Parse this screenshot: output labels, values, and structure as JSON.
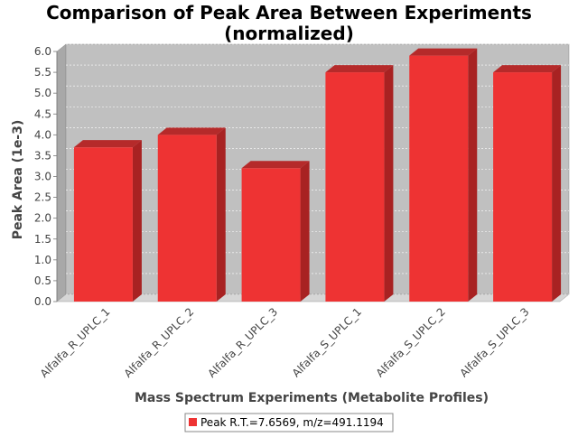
{
  "chart_data": {
    "type": "bar",
    "title": "Comparison of Peak Area Between Experiments",
    "subtitle": "(normalized)",
    "xlabel": "Mass Spectrum Experiments (Metabolite Profiles)",
    "ylabel": "Peak Area (1e-3)",
    "categories": [
      "Alfalfa_R_UPLC_1",
      "Alfalfa_R_UPLC_2",
      "Alfalfa_R_UPLC_3",
      "Alfalfa_S_UPLC_1",
      "Alfalfa_S_UPLC_2",
      "Alfalfa_S_UPLC_3"
    ],
    "series": [
      {
        "name": "Peak R.T.=7.6569, m/z=491.1194",
        "values": [
          3.7,
          4.0,
          3.2,
          5.5,
          5.9,
          5.5
        ],
        "color": "#ee3333"
      }
    ],
    "ylim": [
      0,
      6.0
    ],
    "yticks": [
      "0.0",
      "0.5",
      "1.0",
      "1.5",
      "2.0",
      "2.5",
      "3.0",
      "3.5",
      "4.0",
      "4.5",
      "5.0",
      "5.5",
      "6.0"
    ],
    "grid": true,
    "legend_position": "bottom",
    "plot_background": "#c0c0c0"
  }
}
